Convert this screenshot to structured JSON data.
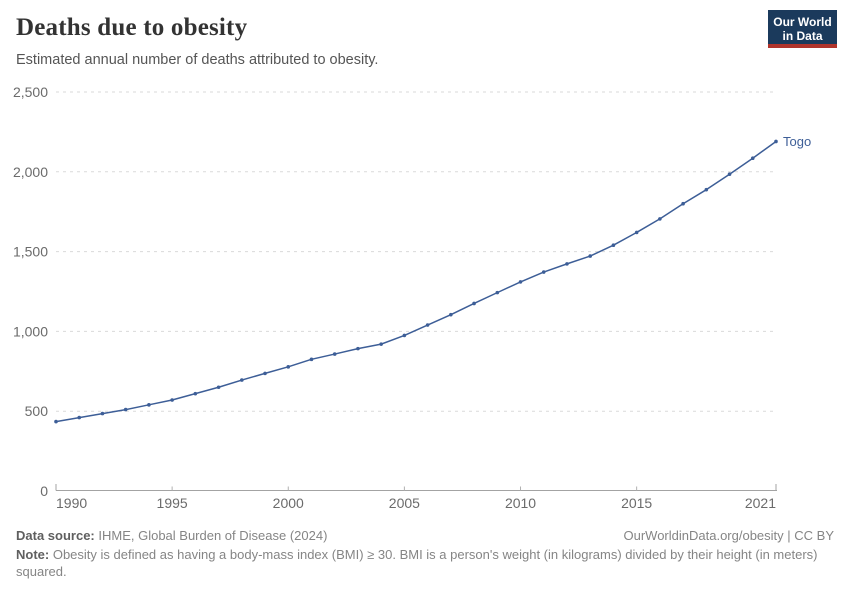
{
  "header": {
    "title": "Deaths due to obesity",
    "subtitle": "Estimated annual number of deaths attributed to obesity.",
    "logo": {
      "line1": "Our World",
      "line2": "in Data"
    }
  },
  "chart_data": {
    "type": "line",
    "title": "Deaths due to obesity",
    "xlabel": "",
    "ylabel": "",
    "x": [
      1990,
      1991,
      1992,
      1993,
      1994,
      1995,
      1996,
      1997,
      1998,
      1999,
      2000,
      2001,
      2002,
      2003,
      2004,
      2005,
      2006,
      2007,
      2008,
      2009,
      2010,
      2011,
      2012,
      2013,
      2014,
      2015,
      2016,
      2017,
      2018,
      2019,
      2020,
      2021
    ],
    "series": [
      {
        "name": "Togo",
        "color": "#3d5e97",
        "values": [
          435,
          460,
          485,
          510,
          540,
          570,
          610,
          650,
          695,
          737,
          778,
          825,
          858,
          892,
          920,
          975,
          1040,
          1105,
          1175,
          1243,
          1310,
          1372,
          1423,
          1472,
          1540,
          1620,
          1705,
          1800,
          1888,
          1985,
          2085,
          2190
        ]
      }
    ],
    "xlim": [
      1990,
      2021
    ],
    "ylim": [
      0,
      2500
    ],
    "x_ticks": [
      1990,
      1995,
      2000,
      2005,
      2010,
      2015,
      2021
    ],
    "y_ticks": [
      0,
      500,
      1000,
      1500,
      2000,
      2500
    ],
    "y_tick_labels": [
      "0",
      "500",
      "1,000",
      "1,500",
      "2,000",
      "2,500"
    ],
    "grid": "horizontal-dashed",
    "legend": "end-of-line-label",
    "colors": {
      "line": "#3d5e97",
      "entity_label": "#3d5e97",
      "gridline": "#dadada",
      "axis_line": "#a3a3a3",
      "tick": "#b0b0b0",
      "tick_label": "#6b6b6b"
    }
  },
  "footer": {
    "source_label": "Data source:",
    "source_text": " IHME, Global Burden of Disease (2024)",
    "rights": "OurWorldinData.org/obesity | CC BY",
    "note_label": "Note:",
    "note_text": " Obesity is defined as having a body-mass index (BMI) ≥ 30. BMI is a person's weight (in kilograms) divided by their height (in meters) squared."
  }
}
